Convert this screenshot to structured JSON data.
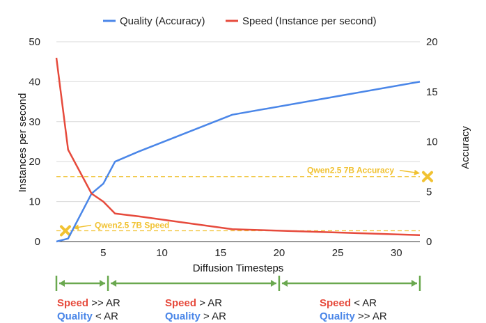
{
  "chart_data": {
    "type": "line",
    "xlabel": "Diffusion Timesteps",
    "ylabel_left": "Instances per second",
    "ylabel_right": "Accuracy",
    "xlim": [
      1,
      32
    ],
    "ylim_left": [
      0,
      50
    ],
    "ylim_right": [
      0,
      20
    ],
    "x_ticks": [
      "5",
      "10",
      "15",
      "20",
      "25",
      "30"
    ],
    "y_left_ticks": [
      "0",
      "10",
      "20",
      "30",
      "40",
      "50"
    ],
    "y_right_ticks": [
      "0",
      "5",
      "10",
      "15",
      "20"
    ],
    "grid": "horizontal",
    "legend_position": "top",
    "colors": {
      "quality": "#4a86e8",
      "speed": "#e64a3c",
      "reference": "#f1c232",
      "brackets": "#6aa84f"
    },
    "series": [
      {
        "name": "Quality (Accuracy)",
        "axis": "right",
        "x": [
          1,
          2,
          4,
          5,
          6,
          8,
          16,
          32
        ],
        "values": [
          0,
          0.3,
          4.8,
          5.8,
          8.0,
          9.0,
          12.7,
          16.0
        ]
      },
      {
        "name": "Speed (Instance per second)",
        "axis": "left",
        "x": [
          1,
          2,
          4,
          5,
          6,
          8,
          16,
          32
        ],
        "values": [
          46,
          23,
          12,
          10,
          7,
          6.3,
          3.1,
          1.6
        ]
      }
    ],
    "reference_lines": [
      {
        "label": "Qwen2.5 7B Accuracy",
        "axis": "right",
        "value": 6.5
      },
      {
        "label": "Qwen2.5 7B Speed",
        "axis": "left",
        "value": 2.7
      }
    ],
    "regions": [
      {
        "from": 1,
        "to": 5.4,
        "speed_label": "Speed",
        "speed_relation": ">> AR",
        "quality_label": "Quality",
        "quality_relation": "< AR"
      },
      {
        "from": 5.4,
        "to": 20,
        "speed_label": "Speed",
        "speed_relation": "> AR",
        "quality_label": "Quality",
        "quality_relation": "> AR"
      },
      {
        "from": 20,
        "to": 32,
        "speed_label": "Speed",
        "speed_relation": "< AR",
        "quality_label": "Quality",
        "quality_relation": ">> AR"
      }
    ]
  }
}
